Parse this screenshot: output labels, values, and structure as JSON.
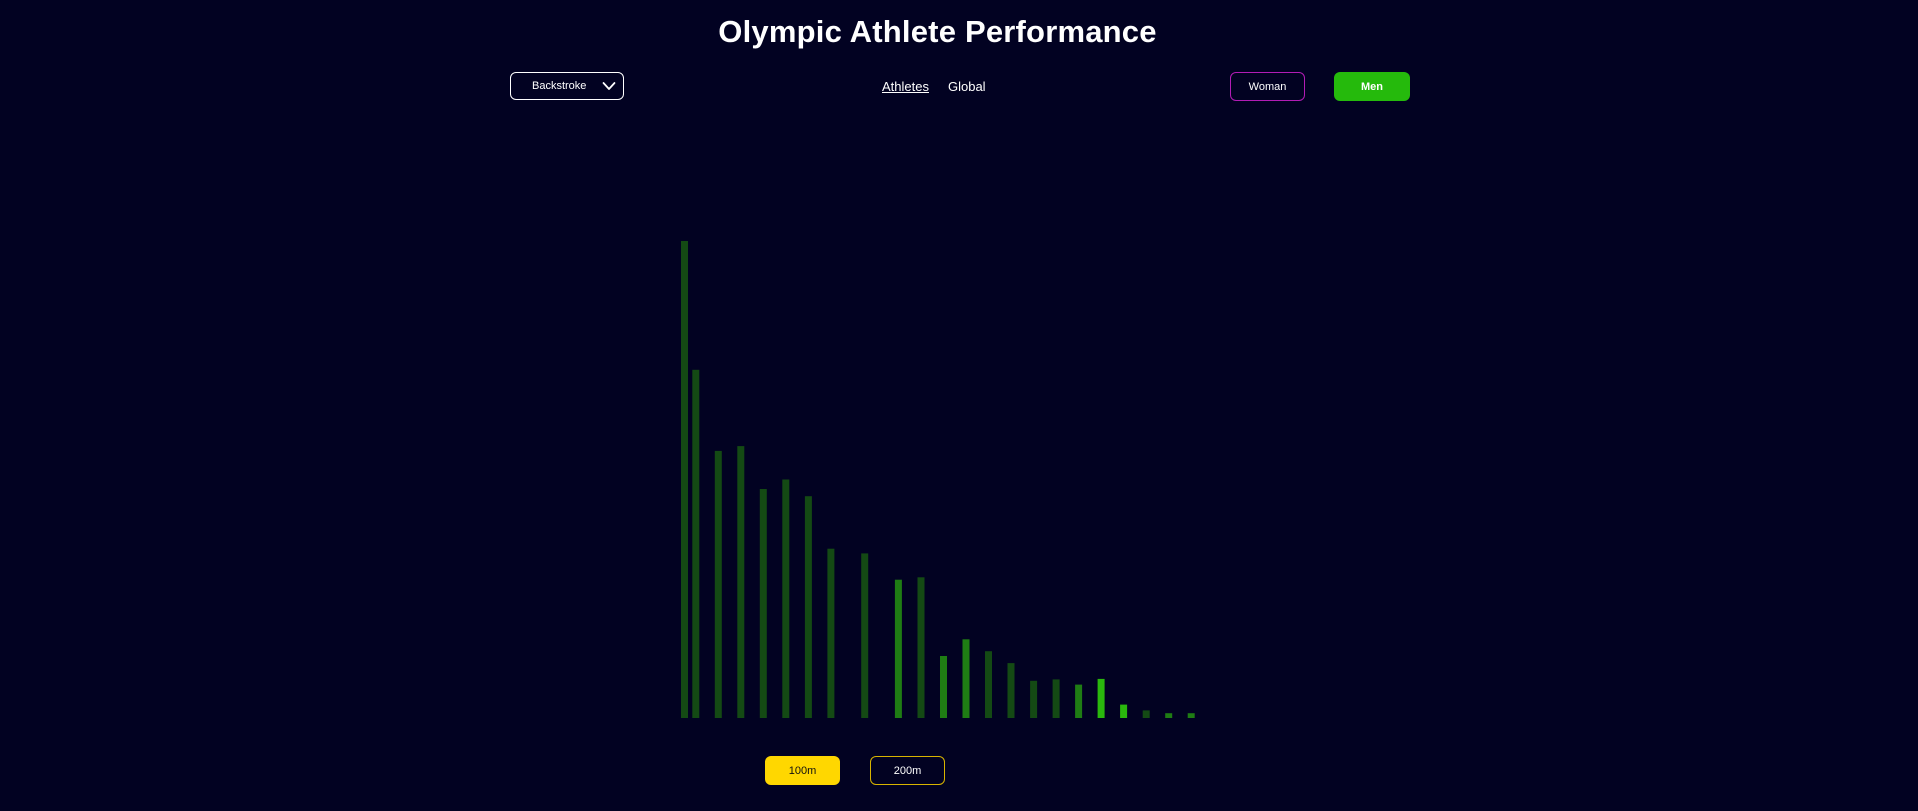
{
  "header": {
    "title": "Olympic Athlete Performance"
  },
  "filters": {
    "stroke": {
      "selected": "Backstroke",
      "icon": "chevron-down-icon"
    },
    "view_tabs": [
      {
        "label": "Athletes",
        "active": true
      },
      {
        "label": "Global",
        "active": false
      }
    ],
    "gender": {
      "woman_label": "Woman",
      "men_label": "Men",
      "selected": "Men"
    },
    "distance": {
      "d100_label": "100m",
      "d200_label": "200m",
      "selected": "100m"
    }
  },
  "colors": {
    "background": "#020222",
    "bar_dark": "#144a14",
    "bar_mid": "#1f7d14",
    "bar_bright": "#2ab80d",
    "woman_border": "#b21cb5",
    "men_fill": "#25ba0c",
    "d100_fill": "#ffd700",
    "d200_border": "#d8b400"
  },
  "chart_data": {
    "type": "bar",
    "title": "",
    "xlabel": "",
    "ylabel": "",
    "ylim": [
      0,
      100
    ],
    "grid": false,
    "legend": "none",
    "bars": [
      {
        "x": 1,
        "value": 100,
        "shade": "dark"
      },
      {
        "x": 2,
        "value": 73,
        "shade": "dark"
      },
      {
        "x": 4,
        "value": 56,
        "shade": "dark"
      },
      {
        "x": 6,
        "value": 57,
        "shade": "dark"
      },
      {
        "x": 8,
        "value": 48,
        "shade": "dark"
      },
      {
        "x": 10,
        "value": 50,
        "shade": "dark"
      },
      {
        "x": 12,
        "value": 46.5,
        "shade": "dark"
      },
      {
        "x": 14,
        "value": 35.5,
        "shade": "dark"
      },
      {
        "x": 17,
        "value": 34.5,
        "shade": "dark"
      },
      {
        "x": 20,
        "value": 29,
        "shade": "mid"
      },
      {
        "x": 22,
        "value": 29.5,
        "shade": "dark"
      },
      {
        "x": 24,
        "value": 13,
        "shade": "mid"
      },
      {
        "x": 26,
        "value": 16.5,
        "shade": "mid"
      },
      {
        "x": 28,
        "value": 14,
        "shade": "dark"
      },
      {
        "x": 30,
        "value": 11.5,
        "shade": "dark"
      },
      {
        "x": 32,
        "value": 7.8,
        "shade": "dark"
      },
      {
        "x": 34,
        "value": 8.1,
        "shade": "dark"
      },
      {
        "x": 36,
        "value": 7,
        "shade": "mid"
      },
      {
        "x": 38,
        "value": 8.2,
        "shade": "bright"
      },
      {
        "x": 40,
        "value": 2.8,
        "shade": "bright"
      },
      {
        "x": 42,
        "value": 1.6,
        "shade": "dark"
      },
      {
        "x": 44,
        "value": 1,
        "shade": "mid"
      },
      {
        "x": 46,
        "value": 1,
        "shade": "mid"
      }
    ]
  }
}
